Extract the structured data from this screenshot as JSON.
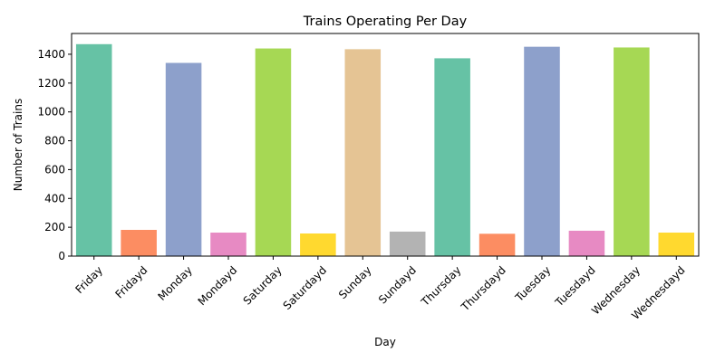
{
  "chart_data": {
    "type": "bar",
    "title": "Trains Operating Per Day",
    "xlabel": "Day",
    "ylabel": "Number of Trains",
    "categories": [
      "Friday",
      "Fridayd",
      "Monday",
      "Mondayd",
      "Saturday",
      "Saturdayd",
      "Sunday",
      "Sundayd",
      "Thursday",
      "Thursdayd",
      "Tuesday",
      "Tuesdayd",
      "Wednesday",
      "Wednesdayd"
    ],
    "values": [
      1470,
      182,
      1340,
      163,
      1440,
      157,
      1435,
      170,
      1372,
      155,
      1452,
      176,
      1447,
      163
    ],
    "colors": [
      "#66c2a5",
      "#fc8d62",
      "#8da0cb",
      "#e78ac3",
      "#a6d854",
      "#ffd92f",
      "#e5c494",
      "#b3b3b3",
      "#66c2a5",
      "#fc8d62",
      "#8da0cb",
      "#e78ac3",
      "#a6d854",
      "#ffd92f"
    ],
    "ylim": [
      0,
      1544
    ],
    "yticks": [
      0,
      200,
      400,
      600,
      800,
      1000,
      1200,
      1400
    ],
    "grid": false,
    "legend": "none"
  }
}
